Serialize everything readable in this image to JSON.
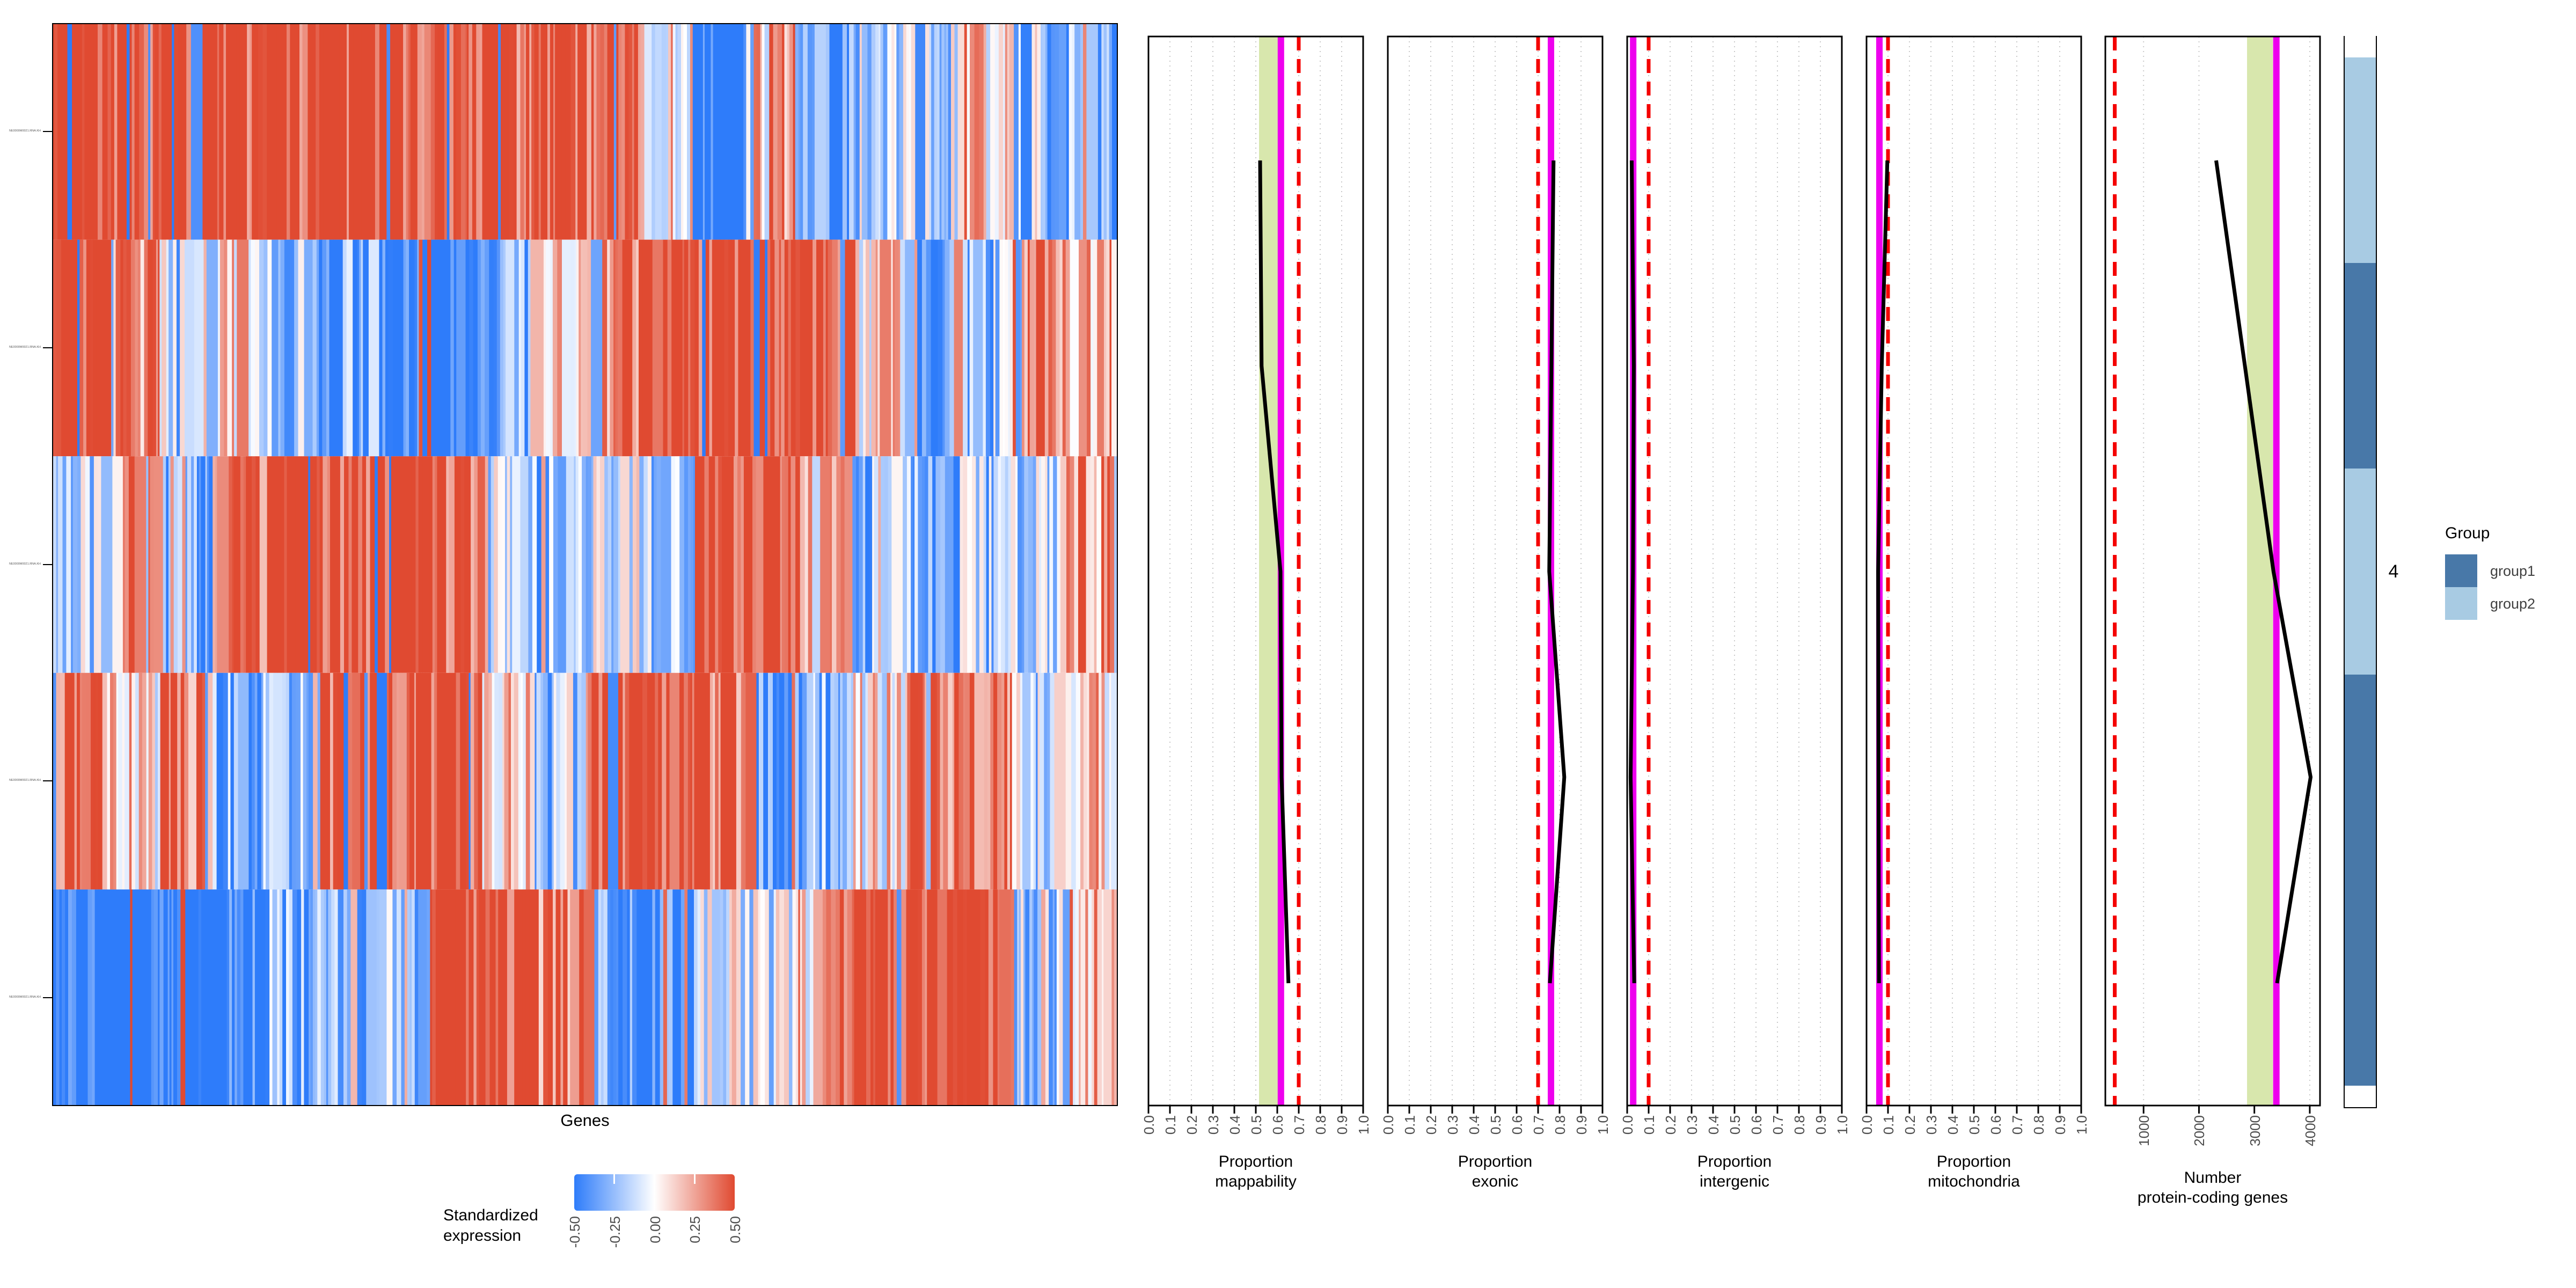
{
  "heatmap": {
    "xlabel": "Genes",
    "row_tick_labels": [
      "NE0000M0021.RNA.KH",
      "NE0000M0021.RNA.KH",
      "NE0000M0021.RNA.KH",
      "NE0000M0021.RNA.KH",
      "NE0000M0021.RNA.KH"
    ],
    "colorbar": {
      "title_lines": [
        "Standardized",
        "expression"
      ],
      "tick_labels": [
        "-0.50",
        "-0.25",
        "0.00",
        "0.25",
        "0.50"
      ]
    }
  },
  "row_slice_label": "4",
  "group_legend": {
    "title": "Group",
    "items": [
      {
        "label": "group1",
        "color": "#4878a8"
      },
      {
        "label": "group2",
        "color": "#a8cbe3"
      }
    ]
  },
  "colors": {
    "heat_low": "#2e7cfa",
    "heat_mid": "#ffffff",
    "heat_high": "#e04a31",
    "band": "#d8e7ad",
    "target_line": "#ee00ee",
    "cutoff_line": "#f40000",
    "tick_text": "#4d4d4d"
  },
  "chart_data": {
    "type": "heatmap-with-qc-line-panels",
    "heatmap": {
      "type": "heatmap",
      "xlabel": "Genes",
      "n_row_slices": 5,
      "row_groups": [
        "group2",
        "group1",
        "group2",
        "group1",
        "group1"
      ],
      "value_legend_range": [
        -0.5,
        0.5
      ],
      "slice_bias_profiles": [
        [
          0.85,
          0.8,
          0.85,
          0.75,
          0.8,
          0.85,
          0.8,
          0.85,
          0.7,
          0.8,
          0.75,
          0.15,
          -0.9,
          0.45,
          -0.65,
          -0.2,
          -0.3,
          0.3,
          -0.35,
          -0.45
        ],
        [
          0.85,
          0.55,
          -0.25,
          0.1,
          -0.35,
          -0.55,
          -0.9,
          -0.85,
          -0.45,
          0.05,
          0.55,
          0.8,
          0.85,
          0.8,
          0.75,
          0.15,
          -0.6,
          -0.35,
          0.55,
          0.35
        ],
        [
          -0.25,
          0.5,
          -0.5,
          0.45,
          0.85,
          0.8,
          0.85,
          0.65,
          -0.1,
          -0.45,
          -0.15,
          -0.35,
          0.7,
          0.8,
          0.25,
          -0.4,
          -0.5,
          -0.3,
          -0.25,
          0.45
        ],
        [
          0.7,
          0.15,
          0.6,
          -0.5,
          -0.35,
          0.75,
          0.85,
          0.8,
          0.2,
          -0.25,
          0.8,
          0.85,
          0.65,
          -0.6,
          -0.45,
          0.1,
          0.6,
          0.7,
          -0.25,
          0.2
        ],
        [
          -0.9,
          -0.9,
          -0.85,
          -0.8,
          -0.5,
          -0.25,
          -0.35,
          0.65,
          0.8,
          0.55,
          -0.6,
          -0.7,
          0.0,
          -0.2,
          0.3,
          0.7,
          0.8,
          0.75,
          -0.3,
          0.3
        ]
      ]
    },
    "qc_panels": [
      {
        "id": "proportion-mappability",
        "type": "line",
        "title_lines": [
          "Proportion",
          "mappability"
        ],
        "xlim": [
          0,
          1
        ],
        "tick_values": [
          0,
          0.1,
          0.2,
          0.3,
          0.4,
          0.5,
          0.6,
          0.7,
          0.8,
          0.9,
          1.0
        ],
        "tick_labels": [
          "0.0",
          "0.1",
          "0.2",
          "0.3",
          "0.4",
          "0.5",
          "0.6",
          "0.7",
          "0.8",
          "0.9",
          "1.0"
        ],
        "grid_values": [
          0.1,
          0.2,
          0.3,
          0.4,
          0.5,
          0.6,
          0.7,
          0.8,
          0.9
        ],
        "green_band": [
          0.515,
          0.61
        ],
        "magenta_line": 0.617,
        "red_dashed_line": 0.7,
        "row_values": [
          0.52,
          0.527,
          0.615,
          0.62,
          0.652
        ]
      },
      {
        "id": "proportion-exonic",
        "type": "line",
        "title_lines": [
          "Proportion",
          "exonic"
        ],
        "xlim": [
          0,
          1
        ],
        "tick_values": [
          0,
          0.1,
          0.2,
          0.3,
          0.4,
          0.5,
          0.6,
          0.7,
          0.8,
          0.9,
          1.0
        ],
        "tick_labels": [
          "0.0",
          "0.1",
          "0.2",
          "0.3",
          "0.4",
          "0.5",
          "0.6",
          "0.7",
          "0.8",
          "0.9",
          "1.0"
        ],
        "grid_values": [
          0.1,
          0.2,
          0.3,
          0.4,
          0.5,
          0.6,
          0.7,
          0.8,
          0.9
        ],
        "green_band": null,
        "magenta_line": 0.76,
        "red_dashed_line": 0.7,
        "row_values": [
          0.772,
          0.762,
          0.752,
          0.822,
          0.755
        ]
      },
      {
        "id": "proportion-intergenic",
        "type": "line",
        "title_lines": [
          "Proportion",
          "intergenic"
        ],
        "xlim": [
          0,
          1
        ],
        "tick_values": [
          0,
          0.1,
          0.2,
          0.3,
          0.4,
          0.5,
          0.6,
          0.7,
          0.8,
          0.9,
          1.0
        ],
        "tick_labels": [
          "0.0",
          "0.1",
          "0.2",
          "0.3",
          "0.4",
          "0.5",
          "0.6",
          "0.7",
          "0.8",
          "0.9",
          "1.0"
        ],
        "grid_values": [
          0.1,
          0.2,
          0.3,
          0.4,
          0.5,
          0.6,
          0.7,
          0.8,
          0.9
        ],
        "green_band": null,
        "magenta_line": 0.028,
        "red_dashed_line": 0.1,
        "row_values": [
          0.021,
          0.031,
          0.027,
          0.016,
          0.033
        ]
      },
      {
        "id": "proportion-mitochondria",
        "type": "line",
        "title_lines": [
          "Proportion",
          "mitochondria"
        ],
        "xlim": [
          0,
          1
        ],
        "tick_values": [
          0,
          0.1,
          0.2,
          0.3,
          0.4,
          0.5,
          0.6,
          0.7,
          0.8,
          0.9,
          1.0
        ],
        "tick_labels": [
          "0.0",
          "0.1",
          "0.2",
          "0.3",
          "0.4",
          "0.5",
          "0.6",
          "0.7",
          "0.8",
          "0.9",
          "1.0"
        ],
        "grid_values": [
          0.1,
          0.2,
          0.3,
          0.4,
          0.5,
          0.6,
          0.7,
          0.8,
          0.9
        ],
        "green_band": null,
        "magenta_line": 0.06,
        "red_dashed_line": 0.1,
        "row_values": [
          0.097,
          0.071,
          0.054,
          0.056,
          0.058
        ]
      },
      {
        "id": "number-protein-coding-genes",
        "type": "line",
        "title_lines": [
          "Number",
          "protein-coding genes"
        ],
        "xlim": [
          310,
          4185
        ],
        "tick_values": [
          1000,
          2000,
          3000,
          4000
        ],
        "tick_labels": [
          "1000",
          "2000",
          "3000",
          "4000"
        ],
        "grid_values": [
          1000,
          2000,
          3000,
          4000
        ],
        "green_band": [
          2868,
          3335
        ],
        "magenta_line": 3397,
        "red_dashed_line": 480,
        "row_values": [
          2310,
          2830,
          3345,
          4015,
          3410
        ]
      }
    ],
    "annotation_bar": {
      "title": "Group",
      "segments": [
        {
          "group": "",
          "y0": 67,
          "y1": 107
        },
        {
          "group": "group2",
          "y0": 107,
          "y1": 490
        },
        {
          "group": "group1",
          "y0": 490,
          "y1": 873
        },
        {
          "group": "group2",
          "y0": 873,
          "y1": 1257
        },
        {
          "group": "group1",
          "y0": 1257,
          "y1": 2023
        },
        {
          "group": "",
          "y0": 2023,
          "y1": 2061
        }
      ]
    }
  }
}
